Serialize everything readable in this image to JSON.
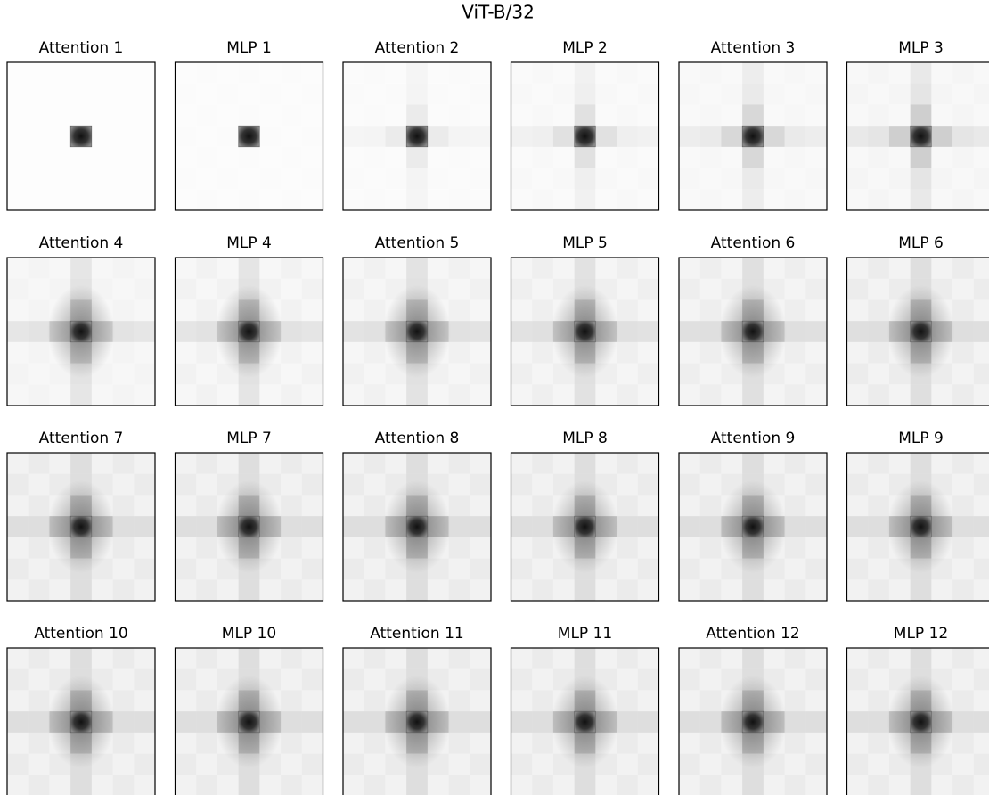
{
  "title": "ViT-B/32",
  "panels": [
    "Attention 1",
    "MLP 1",
    "Attention 2",
    "MLP 2",
    "Attention 3",
    "MLP 3",
    "Attention 4",
    "MLP 4",
    "Attention 5",
    "MLP 5",
    "Attention 6",
    "MLP 6",
    "Attention 7",
    "MLP 7",
    "Attention 8",
    "MLP 8",
    "Attention 9",
    "MLP 9",
    "Attention 10",
    "MLP 10",
    "Attention 11",
    "MLP 11",
    "Attention 12",
    "MLP 12"
  ]
}
